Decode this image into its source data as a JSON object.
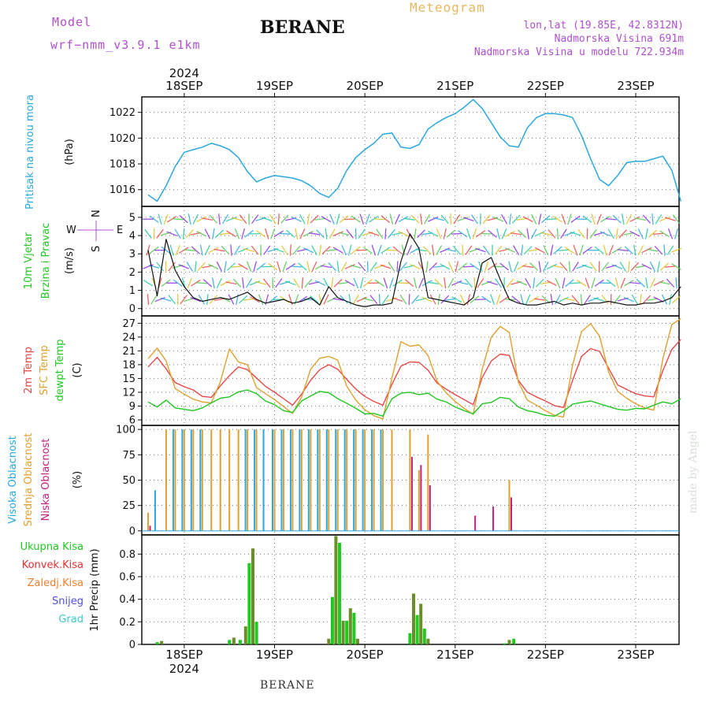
{
  "header": {
    "model_label": "Model",
    "model_name": "wrf−nmm_v3.9.1  e1km",
    "title": "BERANE",
    "meteogram_label": "Meteogram",
    "coords": "lon,lat (19.85E, 42.8312N)",
    "altitude": "Nadmorska Visina 691m",
    "model_altitude": "Nadmorska Visina u modelu 722.934m",
    "bottom_label": "BERANE",
    "watermark": "made by Angel"
  },
  "colors": {
    "pressure": "#2aa8e0",
    "wind_speed": "#111111",
    "temp2m": "#e84848",
    "sfc_temp": "#e0a030",
    "dewpoint": "#22c822",
    "cloud_high": "#2aa8e0",
    "cloud_mid": "#e0a030",
    "cloud_low": "#c02080",
    "precip_total": "#22c822",
    "precip_conv": "#e83030",
    "precip_ice": "#f08030",
    "precip_snow": "#5050e0",
    "precip_grad": "#40c8c8"
  },
  "chart_data": [
    {
      "type": "line",
      "name": "pressure",
      "ylabel": [
        "Pritisak na nivou mora",
        "(hPa)"
      ],
      "yticks": [
        1016,
        1018,
        1020,
        1022
      ],
      "ylim": [
        1014.7,
        1023.2
      ],
      "x_days": [
        17.6,
        17.7,
        17.8,
        17.9,
        18.0,
        18.1,
        18.2,
        18.3,
        18.4,
        18.5,
        18.6,
        18.7,
        18.8,
        18.9,
        19.0,
        19.1,
        19.2,
        19.3,
        19.4,
        19.5,
        19.6,
        19.7,
        19.8,
        19.9,
        20.0,
        20.1,
        20.2,
        20.3,
        20.4,
        20.5,
        20.6,
        20.7,
        20.8,
        20.9,
        21.0,
        21.1,
        21.2,
        21.3,
        21.4,
        21.5,
        21.6,
        21.7,
        21.8,
        21.9,
        22.0,
        22.1,
        22.2,
        22.3,
        22.4,
        22.5,
        22.6,
        22.7,
        22.8,
        22.9,
        23.0,
        23.1,
        23.2,
        23.3,
        23.4,
        23.5
      ],
      "values": [
        1015.6,
        1015.1,
        1016.3,
        1017.8,
        1018.9,
        1019.1,
        1019.3,
        1019.6,
        1019.4,
        1019.1,
        1018.5,
        1017.4,
        1016.6,
        1016.9,
        1017.1,
        1017.0,
        1016.9,
        1016.7,
        1016.3,
        1015.7,
        1015.4,
        1016.1,
        1017.5,
        1018.5,
        1019.1,
        1019.6,
        1020.3,
        1020.4,
        1019.3,
        1019.2,
        1019.5,
        1020.7,
        1021.2,
        1021.6,
        1021.9,
        1022.4,
        1023.0,
        1022.3,
        1021.2,
        1020.1,
        1019.4,
        1019.3,
        1020.8,
        1021.6,
        1021.9,
        1021.9,
        1021.8,
        1021.6,
        1020.2,
        1018.4,
        1016.8,
        1016.3,
        1017.1,
        1018.1,
        1018.2,
        1018.2,
        1018.4,
        1018.6,
        1017.5,
        1015.1
      ]
    },
    {
      "type": "line",
      "name": "wind",
      "ylabel": [
        "10m Vjetar",
        "Brzina i Pravac",
        "(m/s)"
      ],
      "compass": {
        "n": "N",
        "s": "S",
        "w": "W",
        "e": "E"
      },
      "yticks": [
        0,
        1,
        2,
        3,
        4,
        5
      ],
      "ylim": [
        -0.4,
        5.6
      ],
      "x_days": [
        17.6,
        17.7,
        17.8,
        17.9,
        18.0,
        18.1,
        18.2,
        18.3,
        18.4,
        18.5,
        18.6,
        18.7,
        18.8,
        18.9,
        19.0,
        19.1,
        19.2,
        19.3,
        19.4,
        19.5,
        19.6,
        19.7,
        19.8,
        19.9,
        20.0,
        20.1,
        20.2,
        20.3,
        20.4,
        20.5,
        20.6,
        20.7,
        20.8,
        20.9,
        21.0,
        21.1,
        21.2,
        21.3,
        21.4,
        21.5,
        21.6,
        21.7,
        21.8,
        21.9,
        22.0,
        22.1,
        22.2,
        22.3,
        22.4,
        22.5,
        22.6,
        22.7,
        22.8,
        22.9,
        23.0,
        23.1,
        23.2,
        23.3,
        23.4,
        23.5
      ],
      "values": [
        3.2,
        0.7,
        3.8,
        2.1,
        1.2,
        0.6,
        0.4,
        0.5,
        0.6,
        0.5,
        0.7,
        0.9,
        0.5,
        0.3,
        0.4,
        0.5,
        0.3,
        0.4,
        0.6,
        0.2,
        1.2,
        0.6,
        0.4,
        0.2,
        0.1,
        0.2,
        0.2,
        0.3,
        2.6,
        4.1,
        3.3,
        0.6,
        0.5,
        0.4,
        0.3,
        0.2,
        0.6,
        2.5,
        2.8,
        1.6,
        0.5,
        0.3,
        0.2,
        0.2,
        0.3,
        0.4,
        0.2,
        0.3,
        0.2,
        0.3,
        0.3,
        0.4,
        0.3,
        0.2,
        0.2,
        0.3,
        0.3,
        0.4,
        0.6,
        1.2
      ]
    },
    {
      "type": "line",
      "name": "temperature",
      "ylabel": [
        "2m Temp",
        "SFC Temp",
        "dewpt Temp",
        "(C)"
      ],
      "yticks": [
        6,
        9,
        12,
        15,
        18,
        21,
        24,
        27
      ],
      "ylim": [
        4.8,
        28.6
      ],
      "x_days": [
        17.6,
        17.7,
        17.8,
        17.9,
        18.0,
        18.1,
        18.2,
        18.3,
        18.4,
        18.5,
        18.6,
        18.7,
        18.8,
        18.9,
        19.0,
        19.1,
        19.2,
        19.3,
        19.4,
        19.5,
        19.6,
        19.7,
        19.8,
        19.9,
        20.0,
        20.1,
        20.2,
        20.3,
        20.4,
        20.5,
        20.6,
        20.7,
        20.8,
        20.9,
        21.0,
        21.1,
        21.2,
        21.3,
        21.4,
        21.5,
        21.6,
        21.7,
        21.8,
        21.9,
        22.0,
        22.1,
        22.2,
        22.3,
        22.4,
        22.5,
        22.6,
        22.7,
        22.8,
        22.9,
        23.0,
        23.1,
        23.2,
        23.3,
        23.4,
        23.5
      ],
      "series": [
        {
          "name": "2m Temp",
          "values": [
            17.5,
            19.6,
            17.1,
            14.1,
            13.2,
            12.5,
            11.1,
            10.9,
            13.4,
            15.6,
            17.5,
            16.9,
            15.1,
            13.3,
            12.0,
            10.6,
            9.2,
            11.6,
            14.6,
            16.9,
            18.0,
            17.0,
            14.8,
            12.7,
            11.1,
            10.0,
            9.2,
            13.7,
            17.7,
            18.6,
            18.5,
            16.8,
            14.0,
            12.7,
            11.5,
            10.4,
            9.3,
            15.2,
            18.8,
            20.3,
            20.0,
            14.6,
            12.0,
            11.0,
            10.1,
            9.1,
            8.7,
            14.5,
            19.8,
            21.5,
            20.9,
            17.2,
            13.6,
            12.6,
            11.7,
            11.2,
            11.0,
            16.7,
            21.3,
            23.5
          ]
        },
        {
          "name": "SFC Temp",
          "values": [
            19.3,
            21.6,
            18.8,
            12.8,
            11.6,
            10.5,
            9.9,
            9.7,
            14.3,
            21.4,
            18.6,
            18.0,
            13.0,
            11.7,
            10.4,
            8.9,
            7.4,
            11.0,
            17.0,
            19.4,
            19.8,
            19.0,
            13.3,
            10.3,
            8.2,
            6.9,
            6.2,
            15.1,
            23.0,
            22.0,
            22.3,
            20.0,
            14.4,
            11.9,
            10.0,
            8.5,
            7.2,
            17.0,
            24.0,
            26.3,
            25.0,
            14.2,
            10.3,
            9.2,
            8.0,
            7.0,
            6.6,
            17.8,
            25.2,
            26.9,
            24.2,
            16.4,
            12.2,
            10.7,
            9.5,
            8.6,
            8.1,
            19.3,
            26.7,
            28.0
          ]
        },
        {
          "name": "dewpt Temp",
          "values": [
            9.9,
            8.8,
            10.3,
            8.6,
            8.3,
            8.0,
            8.6,
            9.7,
            10.7,
            11.0,
            12.1,
            12.5,
            11.7,
            10.1,
            9.3,
            8.0,
            7.6,
            10.1,
            11.2,
            12.2,
            11.9,
            10.6,
            9.6,
            8.5,
            7.3,
            7.4,
            6.8,
            10.6,
            11.8,
            12.0,
            11.5,
            11.8,
            10.5,
            9.9,
            8.8,
            8.0,
            7.3,
            9.5,
            9.8,
            10.9,
            10.6,
            8.8,
            8.0,
            7.6,
            7.0,
            6.8,
            7.9,
            9.4,
            9.8,
            10.1,
            9.5,
            8.9,
            8.3,
            8.1,
            8.5,
            8.4,
            9.2,
            9.9,
            9.5,
            10.6
          ]
        }
      ]
    },
    {
      "type": "bar",
      "name": "clouds",
      "ylabel": [
        "Visoka Oblacnost",
        "Srednja Oblacnost",
        "Niska Oblacnost",
        "(%)"
      ],
      "yticks": [
        0,
        25,
        50,
        75,
        100
      ],
      "ylim": [
        -4,
        104
      ],
      "x_days": [
        17.6,
        17.7,
        17.8,
        17.9,
        18.0,
        18.1,
        18.2,
        18.3,
        18.4,
        18.5,
        18.6,
        18.7,
        18.8,
        18.9,
        19.0,
        19.1,
        19.2,
        19.3,
        19.4,
        19.5,
        19.6,
        19.7,
        19.8,
        19.9,
        20.0,
        20.1,
        20.2,
        20.3,
        20.4,
        20.5,
        20.6,
        20.7,
        20.8,
        20.9,
        21.0,
        21.1,
        21.2,
        21.3,
        21.4,
        21.5,
        21.6,
        21.7,
        21.8,
        21.9,
        22.0,
        22.1,
        22.2,
        22.3,
        22.4,
        22.5,
        22.6,
        22.7,
        22.8,
        22.9,
        23.0,
        23.1,
        23.2,
        23.3,
        23.4,
        23.5
      ],
      "series": [
        {
          "name": "Visoka Oblacnost",
          "values": [
            0,
            40,
            0,
            100,
            100,
            100,
            100,
            0,
            0,
            0,
            0,
            100,
            100,
            100,
            100,
            100,
            100,
            100,
            100,
            100,
            100,
            100,
            100,
            100,
            100,
            100,
            100,
            0,
            0,
            0,
            0,
            0,
            0,
            0,
            0,
            0,
            0,
            0,
            0,
            0,
            0,
            0,
            0,
            0,
            0,
            0,
            0,
            0,
            0,
            0,
            0,
            0,
            0,
            0,
            0,
            0,
            0,
            0,
            0,
            0
          ]
        },
        {
          "name": "Srednja Oblacnost",
          "values": [
            18,
            0,
            100,
            100,
            100,
            100,
            100,
            100,
            100,
            100,
            100,
            100,
            100,
            0,
            100,
            100,
            100,
            100,
            100,
            100,
            100,
            100,
            100,
            100,
            100,
            100,
            100,
            100,
            0,
            100,
            60,
            95,
            0,
            0,
            0,
            0,
            0,
            0,
            0,
            0,
            50,
            0,
            0,
            0,
            0,
            0,
            0,
            0,
            0,
            0,
            0,
            0,
            0,
            0,
            0,
            0,
            0,
            0,
            0,
            0
          ]
        },
        {
          "name": "Niska Oblacnost",
          "values": [
            5,
            0,
            0,
            0,
            0,
            0,
            0,
            0,
            0,
            0,
            0,
            0,
            0,
            0,
            0,
            0,
            0,
            0,
            0,
            0,
            0,
            0,
            0,
            0,
            0,
            0,
            0,
            0,
            0,
            73,
            65,
            45,
            0,
            0,
            0,
            0,
            15,
            0,
            24,
            0,
            33,
            0,
            0,
            0,
            0,
            0,
            0,
            0,
            0,
            0,
            0,
            0,
            0,
            0,
            0,
            0,
            0,
            0,
            0,
            0
          ]
        }
      ]
    },
    {
      "type": "bar",
      "name": "precip",
      "ylabel": [
        "1hr Precip (mm)"
      ],
      "legend": [
        "Ukupna Kisa",
        "Konvek.Kisa",
        "Zaledj.Kisa",
        "Snijeg",
        "Grad"
      ],
      "yticks": [
        0,
        0.2,
        0.4,
        0.6,
        0.8
      ],
      "ylim": [
        0,
        0.97
      ],
      "x_days": [
        17.7,
        17.75,
        18.5,
        18.55,
        18.62,
        18.68,
        18.72,
        18.76,
        18.8,
        19.6,
        19.64,
        19.68,
        19.72,
        19.76,
        19.8,
        19.84,
        19.88,
        19.92,
        20.5,
        20.54,
        20.58,
        20.62,
        20.66,
        20.7,
        21.55,
        21.6,
        21.65
      ],
      "values": [
        0.02,
        0.03,
        0.04,
        0.06,
        0.04,
        0.16,
        0.72,
        0.85,
        0.2,
        0.05,
        0.42,
        0.96,
        0.9,
        0.21,
        0.21,
        0.32,
        0.28,
        0.05,
        0.1,
        0.45,
        0.26,
        0.36,
        0.14,
        0.05,
        0.01,
        0.04,
        0.05
      ]
    }
  ],
  "days": [
    "18SEP",
    "19SEP",
    "20SEP",
    "21SEP",
    "22SEP",
    "23SEP"
  ],
  "year": "2024"
}
